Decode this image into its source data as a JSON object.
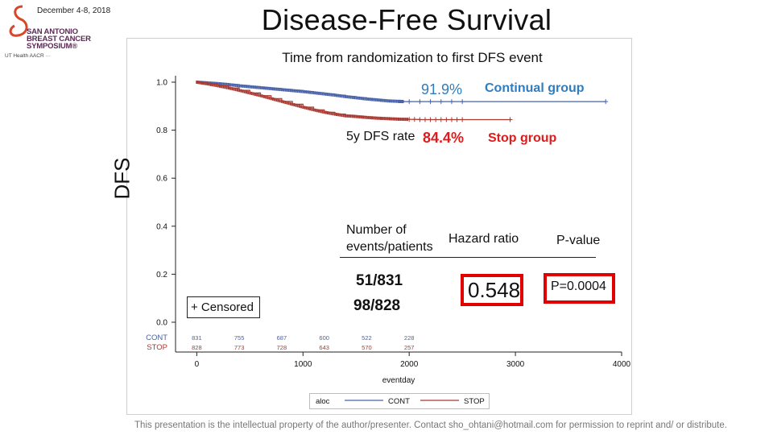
{
  "header": {
    "date": "December 4-8, 2018",
    "logo_text": [
      "SAN ANTONIO",
      "BREAST CANCER",
      "SYMPOSIUM®"
    ],
    "sponsor_text": "UT Health   AACR   ···"
  },
  "slide_title": "Disease-Free Survival",
  "y_axis_label": "DFS",
  "annotations": {
    "cont_rate": "91.9%",
    "cont_label": "Continual group",
    "rate_prefix": "5y DFS rate",
    "stop_rate": "84.4%",
    "stop_label": "Stop group",
    "col_events_line1": "Number of",
    "col_events_line2": "events/patients",
    "col_hr": "Hazard ratio",
    "col_p": "P-value",
    "cont_events": "51/831",
    "stop_events": "98/828",
    "hazard_ratio": "0.548",
    "p_value": "P=0.0004",
    "censored_label": "+ Censored"
  },
  "footer": "This presentation is the intellectual property of the author/presenter. Contact sho_ohtani@hotmail.com for permission to reprint and/ or distribute.",
  "colors": {
    "cont": "#4a63a8",
    "stop": "#a83a32",
    "accent_red": "#e00000",
    "accent_blue": "#2f7dbf"
  },
  "chart_data": {
    "type": "line",
    "title": "Time from randomization to first DFS event",
    "xlabel": "eventday",
    "ylabel": "DFS",
    "xlim": [
      -200,
      4000
    ],
    "ylim": [
      0.0,
      1.0
    ],
    "x_ticks": [
      0,
      1000,
      2000,
      3000,
      4000
    ],
    "y_ticks": [
      0.0,
      0.2,
      0.4,
      0.6,
      0.8,
      1.0
    ],
    "y_tick_labels": [
      "0.0",
      "0.2",
      "0.4",
      "0.6",
      "0.8",
      "1.0"
    ],
    "legend_title": "aloc",
    "legend_position": "bottom",
    "series": [
      {
        "name": "CONT",
        "color": "#4a63a8",
        "x": [
          0,
          100,
          200,
          300,
          400,
          500,
          600,
          700,
          800,
          900,
          1000,
          1100,
          1200,
          1300,
          1400,
          1500,
          1600,
          1700,
          1800,
          1900,
          1950,
          2000,
          2500,
          3000,
          3850
        ],
        "y": [
          1.0,
          0.997,
          0.994,
          0.99,
          0.985,
          0.981,
          0.977,
          0.973,
          0.969,
          0.965,
          0.961,
          0.956,
          0.951,
          0.946,
          0.94,
          0.935,
          0.93,
          0.926,
          0.922,
          0.92,
          0.919,
          0.919,
          0.919,
          0.919,
          0.919
        ],
        "censor_x": [
          2000,
          2100,
          2200,
          2300,
          2400,
          2500,
          3850
        ]
      },
      {
        "name": "STOP",
        "color": "#a83a32",
        "x": [
          0,
          100,
          200,
          300,
          400,
          500,
          600,
          700,
          800,
          900,
          1000,
          1100,
          1200,
          1300,
          1400,
          1500,
          1600,
          1700,
          1800,
          1900,
          2000,
          2100,
          2200,
          2300,
          2400,
          2500,
          2950
        ],
        "y": [
          1.0,
          0.993,
          0.985,
          0.976,
          0.966,
          0.955,
          0.944,
          0.932,
          0.92,
          0.908,
          0.896,
          0.885,
          0.875,
          0.867,
          0.86,
          0.857,
          0.853,
          0.85,
          0.848,
          0.846,
          0.845,
          0.844,
          0.844,
          0.844,
          0.844,
          0.844,
          0.844
        ],
        "censor_x": [
          2000,
          2050,
          2100,
          2150,
          2200,
          2250,
          2300,
          2350,
          2400,
          2450,
          2500,
          2950
        ]
      }
    ],
    "risk_table": {
      "times": [
        0,
        400,
        800,
        1200,
        1600,
        2000
      ],
      "rows": [
        {
          "label": "CONT",
          "values": [
            "831",
            "755",
            "687",
            "600",
            "522",
            "228"
          ]
        },
        {
          "label": "STOP",
          "values": [
            "828",
            "773",
            "728",
            "643",
            "570",
            "257"
          ]
        }
      ]
    }
  }
}
